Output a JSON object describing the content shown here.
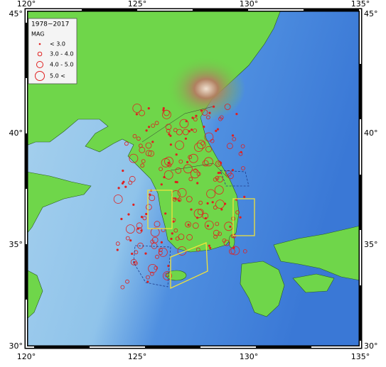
{
  "map": {
    "x_ticks": [
      "120°",
      "125°",
      "130°",
      "135°"
    ],
    "y_ticks": [
      "45°",
      "40°",
      "35°",
      "30°"
    ],
    "legend": {
      "title": "1978~2017",
      "subtitle": "MAG",
      "items": [
        "< 3.0",
        "3.0 - 4.0",
        "4.0 - 5.0",
        "5.0 <"
      ]
    }
  }
}
